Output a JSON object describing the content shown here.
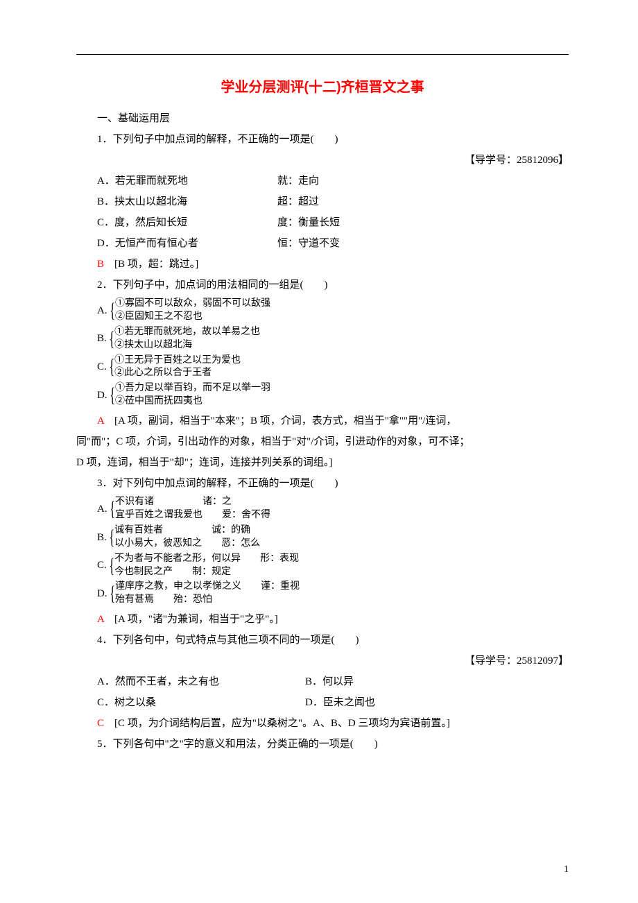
{
  "title": "学业分层测评(十二)齐桓晋文之事",
  "section_header": "一、基础运用层",
  "page_number": "1",
  "q1": {
    "stem": "1．下列句子中加点词的解释，不正确的一项是(　　)",
    "guide": "【导学号：25812096】",
    "opts": [
      {
        "l": "A．若无罪而就死地",
        "r": "就：走向"
      },
      {
        "l": "B．挟太山以超北海",
        "r": "超：超过"
      },
      {
        "l": "C．度，然后知长短",
        "r": "度：衡量长短"
      },
      {
        "l": "D．无恒产而有恒心者",
        "r": "恒：守道不变"
      }
    ],
    "answer": "B",
    "explanation": "　[B 项，超：跳过。]"
  },
  "q2": {
    "stem": "2．下列句子中，加点词的用法相同的一组是(　　)",
    "opts": [
      {
        "letter": "A.",
        "l1": "①寡固不可以敌众，弱固不可以敌强",
        "l2": "②臣固知王之不忍也"
      },
      {
        "letter": "B.",
        "l1": "①若无罪而就死地，故以羊易之也",
        "l2": "②挟太山以超北海"
      },
      {
        "letter": "C.",
        "l1": "①王无异于百姓之以王为爱也",
        "l2": "②此心之所以合于王者"
      },
      {
        "letter": "D.",
        "l1": "①吾力足以举百钧，而不足以举一羽",
        "l2": "②莅中国而抚四夷也"
      }
    ],
    "answer": "A",
    "explanation_lines": [
      "　[A 项，副词，相当于\"本来\"；B 项，介词，表方式，相当于\"拿\"\"用\"/连词，",
      "同\"而\"；C 项，介词，引出动作的对象，相当于\"对\"/介词，引进动作的对象，可不译；",
      "D 项，连词，相当于\"却\"；连词，连接并列关系的词组。]"
    ]
  },
  "q3": {
    "stem": "3．对下列句中加点词的解释，不正确的一项是(　　)",
    "opts": [
      {
        "letter": "A.",
        "l1": "不识有诸　　　　　诸：之",
        "l2": "宜乎百姓之谓我爱也　　爱：舍不得"
      },
      {
        "letter": "B.",
        "l1": "诚有百姓者　　　　　诚：的确",
        "l2": "以小易大，彼恶知之　　恶：怎么"
      },
      {
        "letter": "C.",
        "l1": "不为者与不能者之形，何以异　　形：表现",
        "l2": "今也制民之产　　制：规定"
      },
      {
        "letter": "D.",
        "l1": "谨庠序之教，申之以孝悌之义　　谨：重视",
        "l2": "殆有甚焉　　殆：恐怕"
      }
    ],
    "answer": "A",
    "explanation": "　[A 项，\"诸\"为兼词，相当于\"之乎\"。]"
  },
  "q4": {
    "stem": "4．下列各句中，句式特点与其他三项不同的一项是(　　)",
    "guide": "【导学号：25812097】",
    "row1": {
      "a": "A．然而不王者，未之有也",
      "b": "B．何以异"
    },
    "row2": {
      "a": "C．树之以桑",
      "b": "D．臣未之闻也"
    },
    "answer": "C",
    "explanation": "　[C 项，为介词结构后置，应为\"以桑树之\"。A、B、D 三项均为宾语前置。]"
  },
  "q5": {
    "stem": "5．下列各句中\"之\"字的意义和用法，分类正确的一项是(　　)"
  }
}
